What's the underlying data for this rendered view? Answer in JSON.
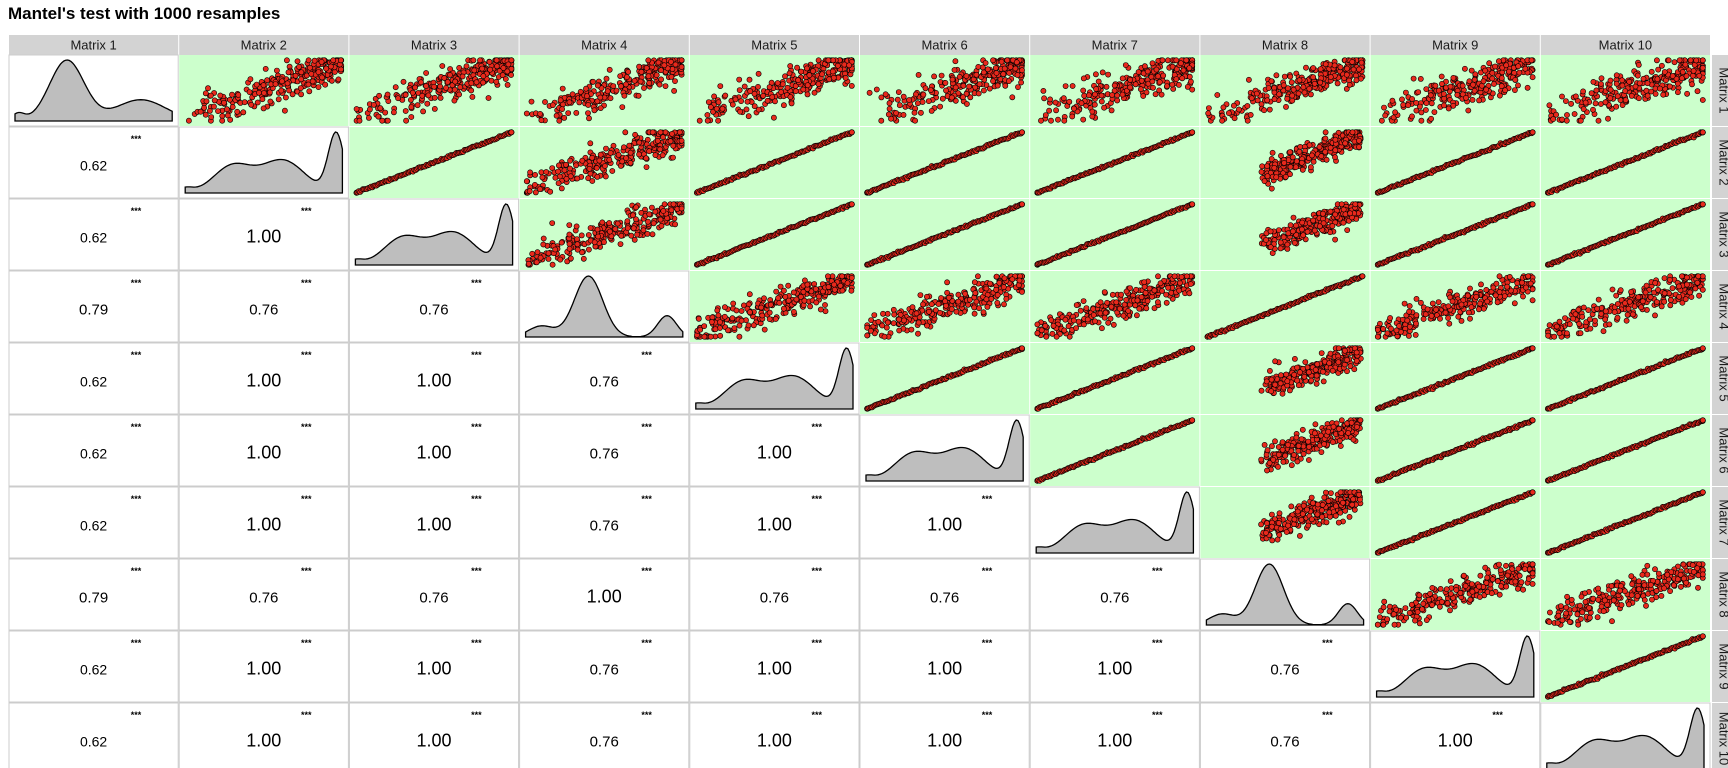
{
  "title": "Mantel's test with 1000 resamples",
  "colors": {
    "strip_bg": "#d3d3d3",
    "panel_border": "#cccccc",
    "highlight_bg": "#ccffcc",
    "point_fill": "#e8291c",
    "point_stroke": "#000000",
    "density_fill": "#bebebe",
    "density_stroke": "#000000"
  },
  "chart_data": {
    "type": "scatter",
    "layout": "pairs-matrix",
    "matrices": [
      "Matrix 1",
      "Matrix 2",
      "Matrix 3",
      "Matrix 4",
      "Matrix 5",
      "Matrix 6",
      "Matrix 7",
      "Matrix 8",
      "Matrix 9",
      "Matrix 10"
    ],
    "significance_label": "***",
    "correlations": [
      [
        null,
        null,
        null,
        null,
        null,
        null,
        null,
        null,
        null,
        null
      ],
      [
        "0.62",
        null,
        null,
        null,
        null,
        null,
        null,
        null,
        null,
        null
      ],
      [
        "0.62",
        "1.00",
        null,
        null,
        null,
        null,
        null,
        null,
        null,
        null
      ],
      [
        "0.79",
        "0.76",
        "0.76",
        null,
        null,
        null,
        null,
        null,
        null,
        null
      ],
      [
        "0.62",
        "1.00",
        "1.00",
        "0.76",
        null,
        null,
        null,
        null,
        null,
        null
      ],
      [
        "0.62",
        "1.00",
        "1.00",
        "0.76",
        "1.00",
        null,
        null,
        null,
        null,
        null
      ],
      [
        "0.62",
        "1.00",
        "1.00",
        "0.76",
        "1.00",
        "1.00",
        null,
        null,
        null,
        null
      ],
      [
        "0.79",
        "0.76",
        "0.76",
        "1.00",
        "0.76",
        "0.76",
        "0.76",
        null,
        null,
        null
      ],
      [
        "0.62",
        "1.00",
        "1.00",
        "0.76",
        "1.00",
        "1.00",
        "1.00",
        "0.76",
        null,
        null
      ],
      [
        "0.62",
        "1.00",
        "1.00",
        "0.76",
        "1.00",
        "1.00",
        "1.00",
        "0.76",
        "1.00",
        null
      ]
    ],
    "highlighted_panels": "all upper-triangle scatter panels"
  }
}
